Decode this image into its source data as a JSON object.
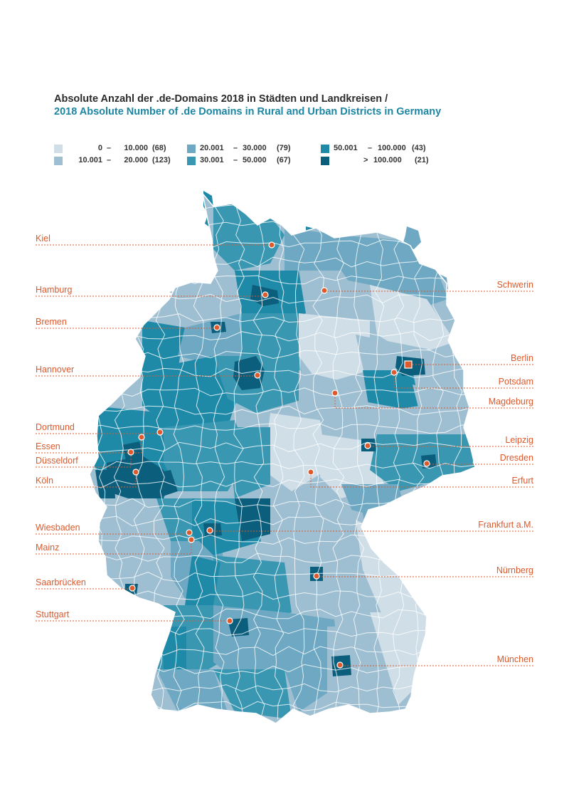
{
  "title": "Absolute Anzahl der .de-Domains 2018 in Städten und Landkreisen /",
  "subtitle": "2018 Absolute Number of .de Domains in Rural and Urban Districts in Germany",
  "colors": {
    "accent": "#dc5a2c",
    "subtitle": "#1b86a4",
    "class1": "#cfdee7",
    "class2": "#9ebfd2",
    "class3": "#6ea8c2",
    "class4": "#3a97b2",
    "class5": "#1f8aa8",
    "class6": "#0b5f7d",
    "border": "#ffffff"
  },
  "legend": [
    {
      "range_from": "0",
      "range_to": "10.000",
      "count": "(68)",
      "color": "#cfdee7"
    },
    {
      "range_from": "10.001",
      "range_to": "20.000",
      "count": "(123)",
      "color": "#9ebfd2"
    },
    {
      "range_from": "20.001",
      "range_to": "30.000",
      "count": "(79)",
      "color": "#6ea8c2"
    },
    {
      "range_from": "30.001",
      "range_to": "50.000",
      "count": "(67)",
      "color": "#3a97b2"
    },
    {
      "range_from": "50.001",
      "range_to": "100.000",
      "count": "(43)",
      "color": "#1f8aa8"
    },
    {
      "range_from": ">",
      "range_to": "100.000",
      "count": "(21)",
      "color": "#0b5f7d"
    }
  ],
  "legend_dash": "–",
  "cities": [
    {
      "name": "Kiel",
      "side": "left",
      "marker": "dot"
    },
    {
      "name": "Hamburg",
      "side": "left",
      "marker": "dot"
    },
    {
      "name": "Bremen",
      "side": "left",
      "marker": "dot"
    },
    {
      "name": "Hannover",
      "side": "left",
      "marker": "dot"
    },
    {
      "name": "Dortmund",
      "side": "left",
      "marker": "dot"
    },
    {
      "name": "Essen",
      "side": "left",
      "marker": "dot"
    },
    {
      "name": "Düsseldorf",
      "side": "left",
      "marker": "dot"
    },
    {
      "name": "Köln",
      "side": "left",
      "marker": "dot"
    },
    {
      "name": "Wiesbaden",
      "side": "left",
      "marker": "dot"
    },
    {
      "name": "Mainz",
      "side": "left",
      "marker": "dot"
    },
    {
      "name": "Saarbrücken",
      "side": "left",
      "marker": "dot"
    },
    {
      "name": "Stuttgart",
      "side": "left",
      "marker": "dot"
    },
    {
      "name": "Schwerin",
      "side": "right",
      "marker": "dot"
    },
    {
      "name": "Berlin",
      "side": "right",
      "marker": "square"
    },
    {
      "name": "Potsdam",
      "side": "right",
      "marker": "dot"
    },
    {
      "name": "Magdeburg",
      "side": "right",
      "marker": "dot"
    },
    {
      "name": "Leipzig",
      "side": "right",
      "marker": "dot"
    },
    {
      "name": "Dresden",
      "side": "right",
      "marker": "dot"
    },
    {
      "name": "Erfurt",
      "side": "right",
      "marker": "dot"
    },
    {
      "name": "Frankfurt a.M.",
      "side": "right",
      "marker": "dot"
    },
    {
      "name": "Nürnberg",
      "side": "right",
      "marker": "dot"
    },
    {
      "name": "München",
      "side": "right",
      "marker": "dot"
    }
  ]
}
